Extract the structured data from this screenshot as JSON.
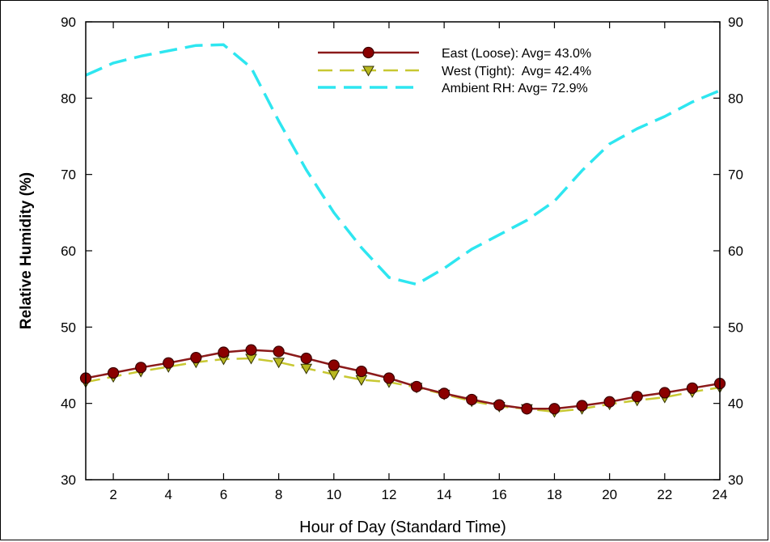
{
  "chart_data": {
    "type": "line",
    "title": "",
    "xlabel": "Hour of Day (Standard Time)",
    "ylabel": "Relative Humidity (%)",
    "xlim": [
      1,
      24
    ],
    "ylim": [
      30,
      90
    ],
    "xticks": [
      2,
      4,
      6,
      8,
      10,
      12,
      14,
      16,
      18,
      20,
      22,
      24
    ],
    "yticks": [
      30,
      40,
      50,
      60,
      70,
      80,
      90
    ],
    "grid": false,
    "legend_position": "top-right",
    "x": [
      1,
      2,
      3,
      4,
      5,
      6,
      7,
      8,
      9,
      10,
      11,
      12,
      13,
      14,
      15,
      16,
      17,
      18,
      19,
      20,
      21,
      22,
      23,
      24
    ],
    "series": [
      {
        "name": "East (Loose): Avg= 43.0%",
        "color": "#8B1A1A",
        "marker_color": "#8B0000",
        "marker": "circle",
        "line_style": "solid",
        "values": [
          43.3,
          44.0,
          44.7,
          45.3,
          46.0,
          46.7,
          47.0,
          46.8,
          45.9,
          45.0,
          44.2,
          43.3,
          42.2,
          41.3,
          40.5,
          39.8,
          39.3,
          39.3,
          39.7,
          40.2,
          40.9,
          41.4,
          42.0,
          42.6
        ]
      },
      {
        "name": "West (Tight):  Avg= 42.4%",
        "color": "#C8C832",
        "marker_color": "#B8B820",
        "marker": "triangle-down",
        "line_style": "dashed",
        "values": [
          42.8,
          43.5,
          44.2,
          44.8,
          45.4,
          45.8,
          45.9,
          45.4,
          44.6,
          43.8,
          43.1,
          42.8,
          42.1,
          41.2,
          40.3,
          39.6,
          39.3,
          38.9,
          39.3,
          39.9,
          40.4,
          40.8,
          41.5,
          42.1
        ]
      },
      {
        "name": "Ambient RH: Avg= 72.9%",
        "color": "#2EE6F0",
        "marker": "none",
        "line_style": "dashed",
        "values": [
          83.0,
          84.6,
          85.5,
          86.2,
          86.9,
          87.0,
          84.0,
          77.0,
          70.6,
          65.0,
          60.4,
          56.5,
          55.6,
          57.7,
          60.2,
          62.1,
          64.0,
          66.5,
          70.5,
          74.0,
          76.0,
          77.6,
          79.5,
          81.0
        ]
      }
    ]
  }
}
